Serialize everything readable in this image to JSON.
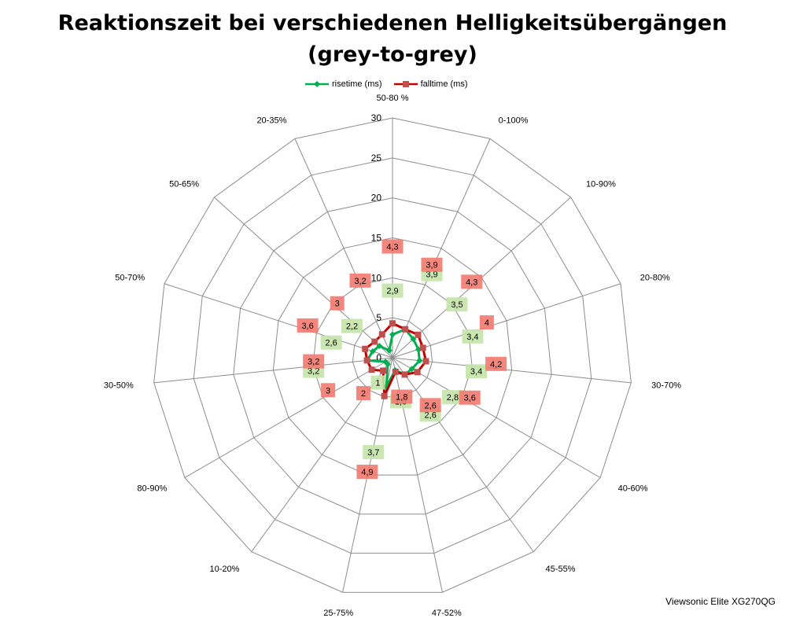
{
  "chart_data": {
    "type": "radar",
    "title": "Reaktionszeit bei verschiedenen Helligkeitsübergängen",
    "subtitle": "(grey-to-grey)",
    "categories": [
      "50-80 %",
      "0-100%",
      "10-90%",
      "20-80%",
      "30-70%",
      "40-60%",
      "45-55%",
      "47-52%",
      "25-75%",
      "10-20%",
      "80-90%",
      "30-50%",
      "50-70%",
      "50-65%",
      "20-35%"
    ],
    "radial_ticks": [
      "0",
      "5",
      "10",
      "15",
      "20",
      "25",
      "30"
    ],
    "rmax": 30,
    "grid": true,
    "legend_position": "top",
    "series": [
      {
        "name": "risetime (ms)",
        "color": "#00b050",
        "marker": "diamond",
        "values": [
          2.9,
          3.9,
          3.5,
          3.4,
          3.4,
          2.8,
          2.6,
          1.6,
          3.7,
          1,
          1,
          3.2,
          2.6,
          2.2,
          1
        ],
        "labels": [
          "2,9",
          "3,9",
          "3,5",
          "3,4",
          "3,4",
          "2,8",
          "2,6",
          "1,6",
          "3,7",
          "1",
          "",
          "3,2",
          "2,6",
          "2,2",
          ""
        ]
      },
      {
        "name": "falltime (ms)",
        "color": "#c00000",
        "marker": "square",
        "values": [
          4.3,
          3.9,
          4.3,
          4,
          4.2,
          3.6,
          2.6,
          1.8,
          4.9,
          2,
          3,
          3.2,
          3.6,
          3,
          3.2
        ],
        "labels": [
          "4,3",
          "3,9",
          "4,3",
          "4",
          "4,2",
          "3,6",
          "2,6",
          "1,8",
          "4,9",
          "2",
          "3",
          "3,2",
          "3,6",
          "3",
          "3,2"
        ]
      }
    ]
  },
  "watermark": "Viewsonic Elite XG270QG"
}
